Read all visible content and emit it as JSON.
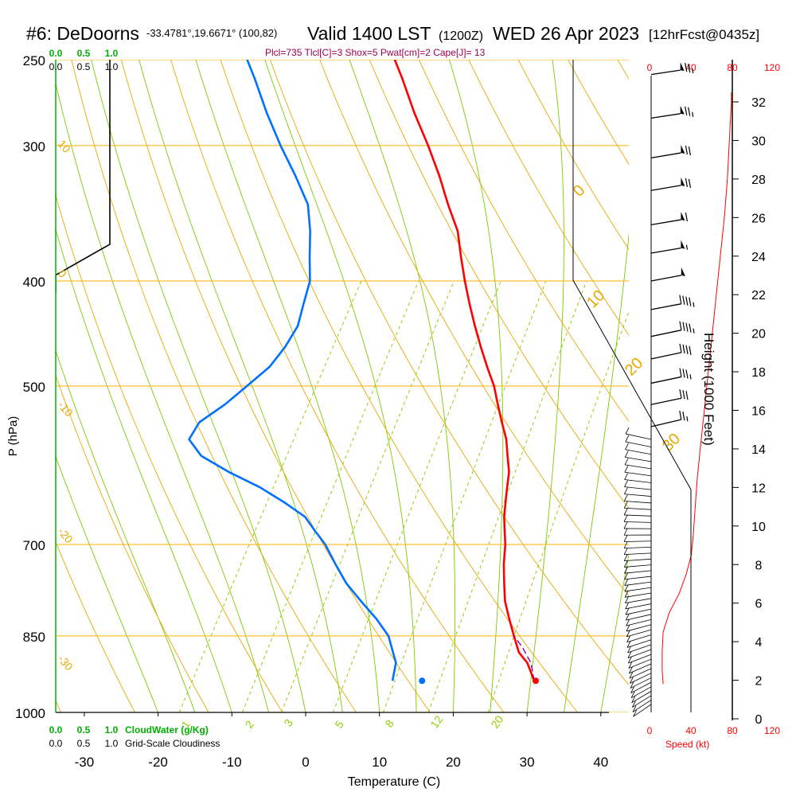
{
  "header": {
    "station": "#6: DeDoorns",
    "coords": "-33.4781°,19.6671° (100,82)",
    "valid": "Valid 1400 LST",
    "utc": "(1200Z)",
    "date": "WED 26 Apr 2023",
    "forecast": "[12hrFcst@0435z]",
    "indices": "Plcl=735 Tlcl[C]=3 Shox=5 Pwat[cm]=2 Cape[J]= 13"
  },
  "labels": {
    "ylabel": "P (hPa)",
    "xlabel": "Temperature (C)",
    "height_label": "Height (1000 Feet)",
    "speed_label": "Speed (kt)",
    "cloudwater_label": "CloudWater (g/Kg)",
    "cloudiness_label": "Grid-Scale Cloudiness"
  },
  "colors": {
    "isobar": "#ffb000",
    "dry_adiabat": "#e8a800",
    "moist_adiabat": "#7fc800",
    "mixing_ratio": "#8fd000",
    "temperature": "#ff0000",
    "dewpoint": "#0070ff",
    "parcel": "#9000a0",
    "cloud": "#00b000",
    "speed": "#ff0000"
  },
  "chart_data": {
    "type": "skew-t",
    "title": "#6: DeDoorns Valid 1400 LST (1200Z) WED 26 Apr 2023",
    "p_ticks": [
      250,
      300,
      400,
      500,
      700,
      850,
      1000
    ],
    "t_ticks": [
      -30,
      -20,
      -10,
      0,
      10,
      20,
      30,
      40
    ],
    "t_range": [
      -34,
      46
    ],
    "p_range": [
      1000,
      250
    ],
    "dry_adiabat_labels": [
      "-30",
      "-20",
      "-10",
      "0",
      "10",
      "20",
      "30"
    ],
    "moist_adiabat_labels": [
      "0",
      "10",
      "20",
      "30"
    ],
    "mixing_ratio_labels": [
      "1",
      "2",
      "3",
      "5",
      "8",
      "12",
      "20"
    ],
    "temperature": {
      "p": [
        935,
        900,
        880,
        850,
        820,
        790,
        760,
        730,
        700,
        680,
        660,
        640,
        620,
        600,
        580,
        560,
        540,
        520,
        500,
        480,
        460,
        440,
        420,
        400,
        380,
        360,
        340,
        320,
        300,
        280,
        260,
        250
      ],
      "t": [
        28.4,
        26.0,
        24.0,
        22.0,
        20.0,
        18.0,
        16.4,
        14.8,
        13.4,
        12.2,
        11.0,
        10.0,
        9.0,
        8.0,
        6.5,
        5.0,
        3.0,
        1.0,
        -1.0,
        -3.5,
        -6.0,
        -8.5,
        -11.0,
        -13.5,
        -16.0,
        -18.5,
        -22.0,
        -25.5,
        -29.5,
        -34.0,
        -38.5,
        -41.0
      ]
    },
    "dewpoint": {
      "p": [
        935,
        900,
        850,
        820,
        790,
        760,
        730,
        700,
        680,
        660,
        640,
        620,
        600,
        580,
        560,
        540,
        520,
        500,
        480,
        460,
        440,
        420,
        400,
        380,
        360,
        340,
        320,
        300,
        280,
        260,
        250
      ],
      "td": [
        9.2,
        8.2,
        5.0,
        2.0,
        -1.5,
        -5.0,
        -8.0,
        -11.0,
        -13.5,
        -16.0,
        -20.0,
        -24.5,
        -30.0,
        -35.0,
        -38.0,
        -38.0,
        -36.0,
        -34.5,
        -33.0,
        -32.5,
        -32.5,
        -33.5,
        -34.5,
        -36.5,
        -38.5,
        -41.0,
        -45.0,
        -49.5,
        -54.0,
        -58.5,
        -61.0
      ]
    },
    "parcel": {
      "p": [
        935,
        900,
        870,
        850
      ],
      "t": [
        28.4,
        26.5,
        24.0,
        22.0
      ]
    },
    "surface_points": [
      {
        "name": "surface-temperature",
        "p": 935,
        "t": 28.6
      },
      {
        "name": "surface-dewpoint",
        "p": 935,
        "t": 13.2
      }
    ],
    "cloud_axis": {
      "ticks": [
        "0.0",
        "0.5",
        "1.0"
      ]
    },
    "cloudiness_profile": {
      "p": [
        250,
        370,
        395,
        410
      ],
      "frac": [
        1.0,
        1.0,
        0.0,
        0.0
      ]
    },
    "height_axis": {
      "ticks": [
        0,
        2,
        4,
        6,
        8,
        10,
        12,
        14,
        16,
        18,
        20,
        22,
        24,
        26,
        28,
        30,
        32
      ]
    },
    "speed_axis": {
      "ticks": [
        "0",
        "40",
        "80",
        "120"
      ]
    },
    "wind_speed_profile": {
      "height_kft": [
        1.8,
        2.5,
        3.5,
        4.5,
        5.5,
        6.5,
        7.5,
        8.5,
        9.5,
        11,
        12.5,
        14,
        16,
        18,
        20,
        22,
        24,
        26,
        28,
        30,
        32,
        32.5
      ],
      "speed_kt": [
        12,
        11,
        11,
        12,
        18,
        28,
        35,
        40,
        42,
        44,
        46,
        49,
        53,
        57,
        61,
        65,
        69,
        73,
        76,
        78,
        80,
        80
      ]
    },
    "wind_barbs": {
      "p": [
        258,
        283,
        308,
        330,
        355,
        377,
        400,
        425,
        450,
        472,
        497,
        520,
        545
      ],
      "dir": [
        285,
        285,
        280,
        280,
        280,
        280,
        275,
        275,
        270,
        270,
        270,
        270,
        265
      ],
      "speed_kt": [
        75,
        75,
        70,
        70,
        60,
        55,
        50,
        45,
        45,
        40,
        35,
        30,
        25
      ]
    }
  }
}
